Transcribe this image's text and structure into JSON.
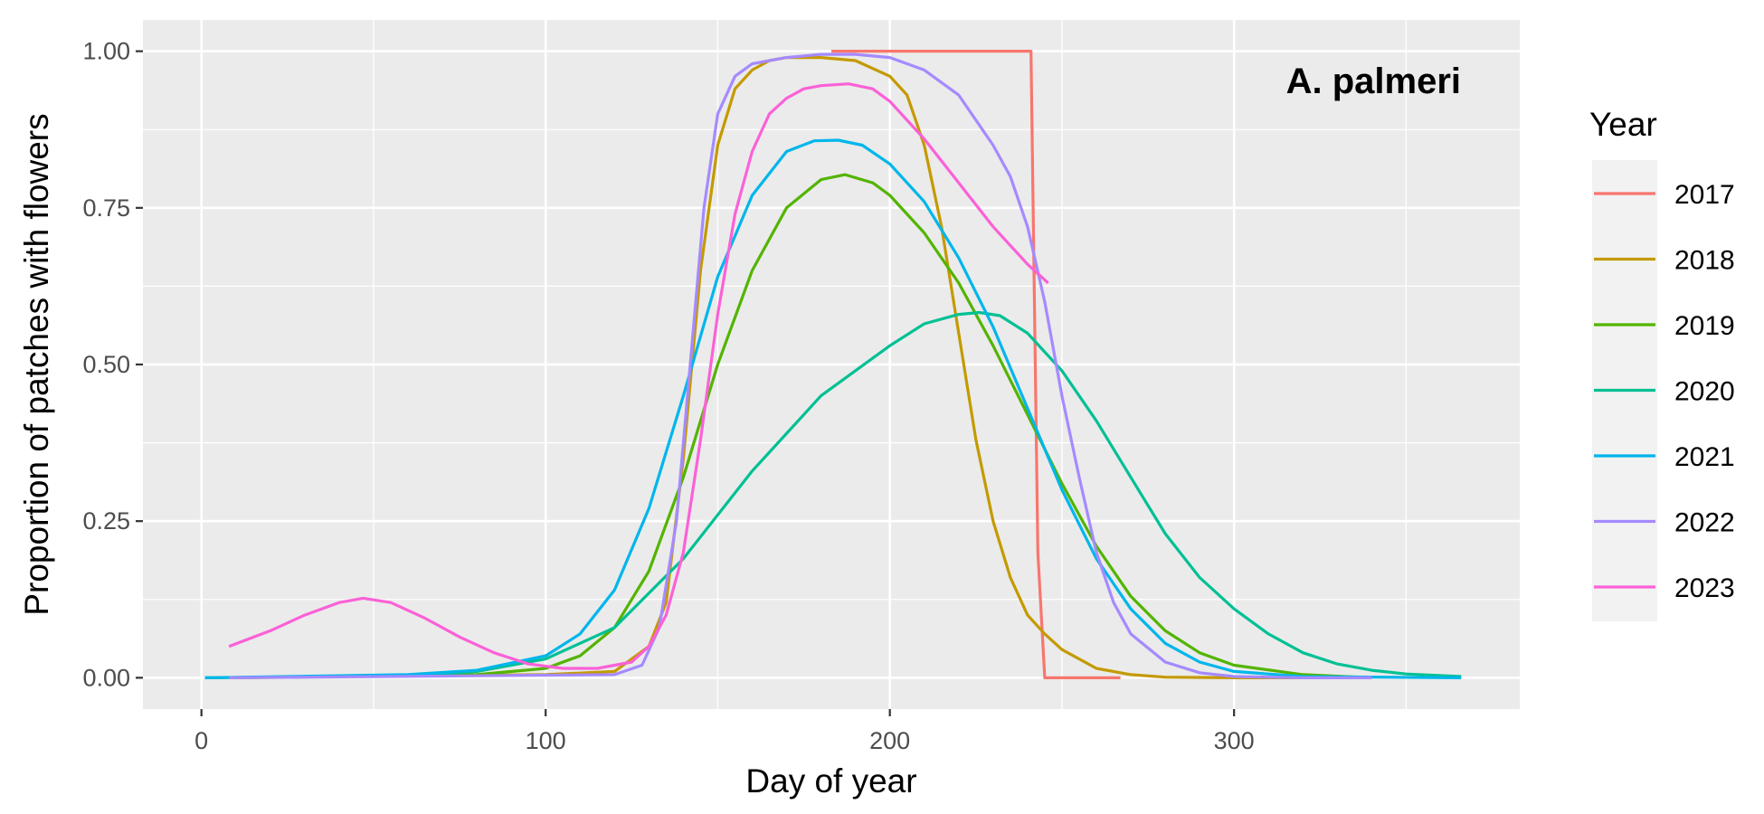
{
  "chart_data": {
    "type": "line",
    "title": "",
    "annotation": "A. palmeri",
    "xlabel": "Day of year",
    "ylabel": "Proportion of patches with flowers",
    "xlim": [
      -17,
      383
    ],
    "ylim": [
      -0.05,
      1.05
    ],
    "x_ticks": [
      0,
      100,
      200,
      300
    ],
    "x_tick_labels": [
      "0",
      "100",
      "200",
      "300"
    ],
    "y_ticks": [
      0,
      0.25,
      0.5,
      0.75,
      1.0
    ],
    "y_tick_labels": [
      "0.00",
      "0.25",
      "0.50",
      "0.75",
      "1.00"
    ],
    "grid": true,
    "legend_title": "Year",
    "legend_position": "right",
    "series": [
      {
        "name": "2017",
        "color": "#F8766D",
        "x": [
          183,
          200,
          220,
          241,
          242,
          243,
          245,
          250,
          260,
          267
        ],
        "y": [
          1.0,
          1.0,
          1.0,
          1.0,
          0.6,
          0.2,
          0.0,
          0.0,
          0.0,
          0.0
        ]
      },
      {
        "name": "2018",
        "color": "#C49A00",
        "x": [
          8,
          100,
          120,
          130,
          135,
          140,
          145,
          150,
          155,
          160,
          165,
          170,
          180,
          190,
          200,
          205,
          210,
          215,
          220,
          225,
          230,
          235,
          240,
          245,
          250,
          260,
          270,
          280,
          300,
          340
        ],
        "y": [
          0,
          0.005,
          0.01,
          0.05,
          0.12,
          0.35,
          0.65,
          0.85,
          0.94,
          0.97,
          0.985,
          0.99,
          0.99,
          0.985,
          0.96,
          0.93,
          0.85,
          0.72,
          0.55,
          0.38,
          0.25,
          0.16,
          0.1,
          0.07,
          0.045,
          0.015,
          0.005,
          0.001,
          0,
          0
        ]
      },
      {
        "name": "2019",
        "color": "#53B400",
        "x": [
          8,
          80,
          100,
          110,
          120,
          130,
          140,
          150,
          160,
          170,
          180,
          187,
          195,
          200,
          210,
          220,
          230,
          240,
          250,
          260,
          270,
          280,
          290,
          300,
          320,
          340
        ],
        "y": [
          0,
          0.005,
          0.015,
          0.035,
          0.08,
          0.17,
          0.32,
          0.5,
          0.65,
          0.75,
          0.795,
          0.803,
          0.79,
          0.77,
          0.71,
          0.63,
          0.53,
          0.42,
          0.31,
          0.21,
          0.13,
          0.075,
          0.04,
          0.02,
          0.005,
          0
        ]
      },
      {
        "name": "2020",
        "color": "#00C094",
        "x": [
          1,
          60,
          80,
          100,
          120,
          140,
          160,
          180,
          200,
          210,
          220,
          226,
          232,
          240,
          250,
          260,
          270,
          280,
          290,
          300,
          310,
          320,
          330,
          340,
          350,
          366
        ],
        "y": [
          0,
          0.003,
          0.01,
          0.03,
          0.08,
          0.19,
          0.33,
          0.45,
          0.53,
          0.565,
          0.58,
          0.583,
          0.578,
          0.55,
          0.49,
          0.41,
          0.32,
          0.23,
          0.16,
          0.11,
          0.07,
          0.04,
          0.022,
          0.012,
          0.006,
          0.002
        ]
      },
      {
        "name": "2021",
        "color": "#00B6EB",
        "x": [
          1,
          60,
          80,
          100,
          110,
          120,
          130,
          140,
          150,
          160,
          170,
          178,
          185,
          192,
          200,
          210,
          220,
          230,
          240,
          250,
          260,
          270,
          280,
          290,
          300,
          320,
          366
        ],
        "y": [
          0,
          0.005,
          0.012,
          0.035,
          0.07,
          0.14,
          0.27,
          0.45,
          0.64,
          0.77,
          0.84,
          0.857,
          0.858,
          0.85,
          0.82,
          0.76,
          0.67,
          0.56,
          0.43,
          0.3,
          0.19,
          0.11,
          0.055,
          0.025,
          0.01,
          0.002,
          0
        ]
      },
      {
        "name": "2022",
        "color": "#A58AFF",
        "x": [
          8,
          120,
          128,
          133,
          138,
          142,
          146,
          150,
          155,
          160,
          170,
          180,
          190,
          200,
          210,
          220,
          230,
          235,
          240,
          245,
          250,
          255,
          260,
          265,
          270,
          280,
          290,
          300,
          320,
          340
        ],
        "y": [
          0,
          0.005,
          0.02,
          0.08,
          0.25,
          0.5,
          0.75,
          0.9,
          0.96,
          0.98,
          0.99,
          0.995,
          0.995,
          0.99,
          0.97,
          0.93,
          0.85,
          0.8,
          0.72,
          0.6,
          0.45,
          0.32,
          0.2,
          0.12,
          0.07,
          0.025,
          0.008,
          0.002,
          0,
          0
        ]
      },
      {
        "name": "2023",
        "color": "#FB61D7",
        "x": [
          8,
          20,
          30,
          40,
          47,
          55,
          65,
          75,
          85,
          95,
          105,
          115,
          125,
          130,
          135,
          140,
          145,
          150,
          155,
          160,
          165,
          170,
          175,
          180,
          188,
          195,
          200,
          210,
          220,
          230,
          240,
          246
        ],
        "y": [
          0.05,
          0.075,
          0.1,
          0.12,
          0.127,
          0.12,
          0.095,
          0.065,
          0.04,
          0.022,
          0.015,
          0.015,
          0.025,
          0.05,
          0.1,
          0.2,
          0.38,
          0.58,
          0.74,
          0.84,
          0.9,
          0.925,
          0.94,
          0.945,
          0.948,
          0.94,
          0.92,
          0.86,
          0.79,
          0.72,
          0.66,
          0.63
        ]
      }
    ]
  }
}
